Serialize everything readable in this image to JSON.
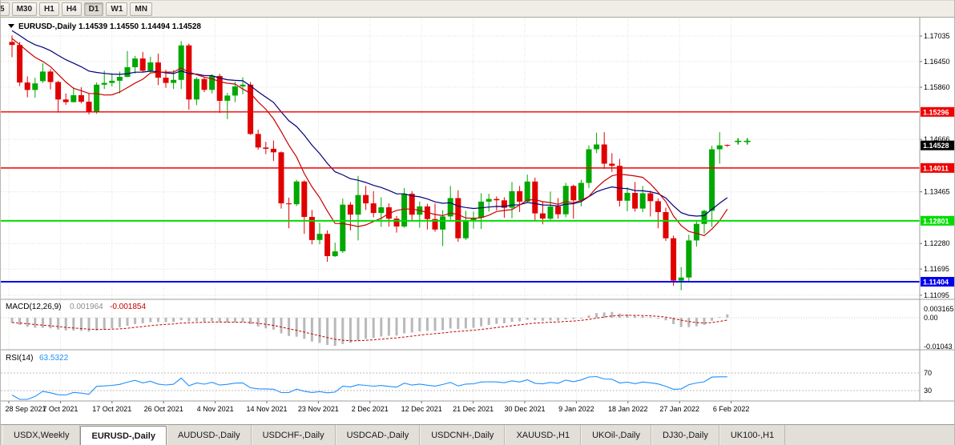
{
  "toolbar": {
    "timeframes": [
      "5",
      "M30",
      "H1",
      "H4",
      "D1",
      "W1",
      "MN"
    ],
    "active_timeframe": "D1"
  },
  "chart": {
    "title": "EURUSD-,Daily",
    "ohlc": [
      "1.14539",
      "1.14550",
      "1.14494",
      "1.14528"
    ]
  },
  "chart_data": {
    "type": "candlestick",
    "symbol": "EURUSD-",
    "timeframe": "Daily",
    "price_axis_labels": [
      "1.17035",
      "1.16450",
      "1.15860",
      "1.14666",
      "1.13465",
      "1.12280",
      "1.11695",
      "1.11095"
    ],
    "date_labels": [
      "28 Sep 2021",
      "7 Oct 2021",
      "17 Oct 2021",
      "26 Oct 2021",
      "4 Nov 2021",
      "14 Nov 2021",
      "23 Nov 2021",
      "2 Dec 2021",
      "12 Dec 2021",
      "21 Dec 2021",
      "30 Dec 2021",
      "9 Jan 2022",
      "18 Jan 2022",
      "27 Jan 2022",
      "6 Feb 2022"
    ],
    "hlines": [
      {
        "price": 1.15296,
        "label": "1.15296",
        "color": "#ee0000",
        "width": 1.4
      },
      {
        "price": 1.14011,
        "label": "1.14011",
        "color": "#ee0000",
        "width": 1.4
      },
      {
        "price": 1.12801,
        "label": "1.12801",
        "color": "#00dd00",
        "width": 2
      },
      {
        "price": 1.11404,
        "label": "1.11404",
        "color": "#0000ee",
        "width": 2
      }
    ],
    "current_price": {
      "value": 1.14528,
      "label": "1.14528"
    },
    "markers": [
      {
        "bar": 94.4,
        "price": 1.1462,
        "glyph": "plus",
        "color": "#00a400"
      },
      {
        "bar": 95.6,
        "price": 1.1462,
        "glyph": "plus",
        "color": "#00a400"
      }
    ],
    "moving_averages": [
      {
        "kind": "sma",
        "period": 8,
        "color": "#cc0000"
      },
      {
        "kind": "ema",
        "period": 20,
        "color": "#00007b"
      }
    ],
    "macd": {
      "title": "MACD(12,26,9)",
      "value_main": "0.001964",
      "value_signal": "-0.001854",
      "fast": 12,
      "slow": 26,
      "signal": 9,
      "axis_labels": [
        {
          "v": 0.003165,
          "text": "0.003165"
        },
        {
          "v": 0,
          "text": "0.00"
        },
        {
          "v": -0.01043,
          "text": "-0.01043"
        }
      ]
    },
    "rsi": {
      "title": "RSI(14)",
      "value": "63.5322",
      "period": 14,
      "levels": [
        70,
        30
      ]
    },
    "colors": {
      "bull": "#00a800",
      "bear": "#e00000",
      "grid": "#dedede",
      "separator": "#9c9c9c",
      "ma_fast": "#cc0000",
      "ma_slow": "#00007b",
      "macd_hist": "#b9b9b9",
      "macd_signal": "#c40000",
      "rsi_line": "#1e90ff",
      "rsi_level": "#bbbbbb"
    },
    "pre_closes": [
      1.1782,
      1.177,
      1.1758,
      1.1762,
      1.1755,
      1.1748,
      1.1742,
      1.175,
      1.1744,
      1.1738,
      1.173,
      1.1735,
      1.1728,
      1.1722,
      1.1726,
      1.1718,
      1.1712,
      1.1716,
      1.1708,
      1.1702,
      1.1706,
      1.1698,
      1.1694,
      1.1699,
      1.1692
    ],
    "candles": [
      [
        1.169,
        1.1705,
        1.1655,
        1.1683
      ],
      [
        1.1683,
        1.169,
        1.1589,
        1.1597
      ],
      [
        1.1597,
        1.1611,
        1.1563,
        1.158
      ],
      [
        1.158,
        1.1608,
        1.1562,
        1.1595
      ],
      [
        1.16,
        1.1641,
        1.1596,
        1.1622
      ],
      [
        1.1622,
        1.1627,
        1.1581,
        1.1598
      ],
      [
        1.1598,
        1.1601,
        1.1528,
        1.1558
      ],
      [
        1.1558,
        1.1572,
        1.1546,
        1.1552
      ],
      [
        1.1552,
        1.1586,
        1.1551,
        1.1568
      ],
      [
        1.1568,
        1.1586,
        1.1549,
        1.1553
      ],
      [
        1.1553,
        1.1572,
        1.1524,
        1.1529
      ],
      [
        1.1529,
        1.1597,
        1.1525,
        1.1592
      ],
      [
        1.1592,
        1.1624,
        1.1582,
        1.1596
      ],
      [
        1.1596,
        1.1618,
        1.1588,
        1.1601
      ],
      [
        1.1601,
        1.1622,
        1.1572,
        1.161
      ],
      [
        1.161,
        1.1669,
        1.1609,
        1.1632
      ],
      [
        1.1632,
        1.1658,
        1.1617,
        1.1652
      ],
      [
        1.1652,
        1.1667,
        1.1621,
        1.1624
      ],
      [
        1.1624,
        1.1656,
        1.162,
        1.1643
      ],
      [
        1.1643,
        1.1663,
        1.1591,
        1.1608
      ],
      [
        1.1608,
        1.1626,
        1.1585,
        1.1596
      ],
      [
        1.1596,
        1.1626,
        1.1582,
        1.1603
      ],
      [
        1.1603,
        1.1692,
        1.1582,
        1.1682
      ],
      [
        1.1682,
        1.1686,
        1.1535,
        1.1558
      ],
      [
        1.1558,
        1.1609,
        1.1545,
        1.1605
      ],
      [
        1.1605,
        1.161,
        1.1575,
        1.158
      ],
      [
        1.158,
        1.1616,
        1.1572,
        1.1612
      ],
      [
        1.1612,
        1.1617,
        1.1527,
        1.1555
      ],
      [
        1.1555,
        1.1573,
        1.1513,
        1.1567
      ],
      [
        1.1567,
        1.1599,
        1.1552,
        1.1588
      ],
      [
        1.1588,
        1.1609,
        1.157,
        1.1592
      ],
      [
        1.1592,
        1.1598,
        1.1477,
        1.1479
      ],
      [
        1.1479,
        1.1489,
        1.1443,
        1.1448
      ],
      [
        1.1448,
        1.1461,
        1.1433,
        1.1445
      ],
      [
        1.1445,
        1.1464,
        1.1417,
        1.1437
      ],
      [
        1.1437,
        1.1439,
        1.1308,
        1.132
      ],
      [
        1.132,
        1.1333,
        1.1263,
        1.1318
      ],
      [
        1.1318,
        1.1374,
        1.1314,
        1.137
      ],
      [
        1.137,
        1.1373,
        1.125,
        1.1289
      ],
      [
        1.1289,
        1.1305,
        1.1226,
        1.1236
      ],
      [
        1.1236,
        1.1275,
        1.1226,
        1.125
      ],
      [
        1.125,
        1.1258,
        1.1186,
        1.1199
      ],
      [
        1.1199,
        1.123,
        1.1197,
        1.121
      ],
      [
        1.121,
        1.1331,
        1.1206,
        1.1317
      ],
      [
        1.1317,
        1.1323,
        1.1258,
        1.1294
      ],
      [
        1.1294,
        1.1383,
        1.1235,
        1.1339
      ],
      [
        1.1339,
        1.136,
        1.1305,
        1.132
      ],
      [
        1.132,
        1.1348,
        1.1288,
        1.1298
      ],
      [
        1.1298,
        1.1334,
        1.1266,
        1.1311
      ],
      [
        1.1311,
        1.132,
        1.1267,
        1.1285
      ],
      [
        1.1285,
        1.1291,
        1.1253,
        1.1267
      ],
      [
        1.1267,
        1.1355,
        1.1264,
        1.1342
      ],
      [
        1.1342,
        1.1348,
        1.128,
        1.1294
      ],
      [
        1.1294,
        1.1324,
        1.1264,
        1.1313
      ],
      [
        1.1313,
        1.1319,
        1.126,
        1.1284
      ],
      [
        1.1284,
        1.132,
        1.1255,
        1.126
      ],
      [
        1.126,
        1.1304,
        1.1222,
        1.129
      ],
      [
        1.129,
        1.136,
        1.1282,
        1.1332
      ],
      [
        1.1332,
        1.135,
        1.1232,
        1.124
      ],
      [
        1.124,
        1.1303,
        1.1236,
        1.128
      ],
      [
        1.128,
        1.1301,
        1.1262,
        1.1287
      ],
      [
        1.1287,
        1.1343,
        1.1261,
        1.1324
      ],
      [
        1.1324,
        1.1342,
        1.1301,
        1.133
      ],
      [
        1.133,
        1.1336,
        1.1304,
        1.1327
      ],
      [
        1.1327,
        1.1334,
        1.1287,
        1.131
      ],
      [
        1.131,
        1.1369,
        1.1286,
        1.1348
      ],
      [
        1.1348,
        1.136,
        1.13,
        1.1324
      ],
      [
        1.1324,
        1.1386,
        1.1321,
        1.137
      ],
      [
        1.137,
        1.1379,
        1.1279,
        1.1297
      ],
      [
        1.1297,
        1.1323,
        1.1272,
        1.1285
      ],
      [
        1.1285,
        1.1347,
        1.128,
        1.1313
      ],
      [
        1.1313,
        1.1332,
        1.1285,
        1.1295
      ],
      [
        1.1295,
        1.1367,
        1.1288,
        1.136
      ],
      [
        1.136,
        1.1363,
        1.1285,
        1.1327
      ],
      [
        1.1327,
        1.1374,
        1.1313,
        1.1367
      ],
      [
        1.1367,
        1.1453,
        1.1355,
        1.1444
      ],
      [
        1.1444,
        1.1482,
        1.1435,
        1.1455
      ],
      [
        1.1455,
        1.1483,
        1.1399,
        1.1411
      ],
      [
        1.1411,
        1.1435,
        1.1392,
        1.1406
      ],
      [
        1.1406,
        1.1422,
        1.1313,
        1.1326
      ],
      [
        1.1326,
        1.1357,
        1.1302,
        1.1344
      ],
      [
        1.1344,
        1.1369,
        1.1301,
        1.1308
      ],
      [
        1.1308,
        1.136,
        1.13,
        1.1343
      ],
      [
        1.1343,
        1.1349,
        1.129,
        1.1325
      ],
      [
        1.1325,
        1.1331,
        1.1263,
        1.13
      ],
      [
        1.13,
        1.131,
        1.1234,
        1.124
      ],
      [
        1.124,
        1.1246,
        1.1131,
        1.1143
      ],
      [
        1.1143,
        1.1174,
        1.1121,
        1.115
      ],
      [
        1.115,
        1.1248,
        1.1141,
        1.1235
      ],
      [
        1.1235,
        1.1279,
        1.1221,
        1.1273
      ],
      [
        1.1273,
        1.1305,
        1.1251,
        1.1303
      ],
      [
        1.1303,
        1.1452,
        1.1266,
        1.1444
      ],
      [
        1.1444,
        1.1483,
        1.1411,
        1.1453
      ],
      [
        1.14539,
        1.1455,
        1.14494,
        1.14528
      ]
    ]
  },
  "tabs": {
    "items": [
      "USDX,Weekly",
      "EURUSD-,Daily",
      "AUDUSD-,Daily",
      "USDCHF-,Daily",
      "USDCAD-,Daily",
      "USDCNH-,Daily",
      "XAUUSD-,H1",
      "UKOil-,Daily",
      "DJ30-,Daily",
      "UK100-,H1"
    ],
    "active_index": 1
  }
}
